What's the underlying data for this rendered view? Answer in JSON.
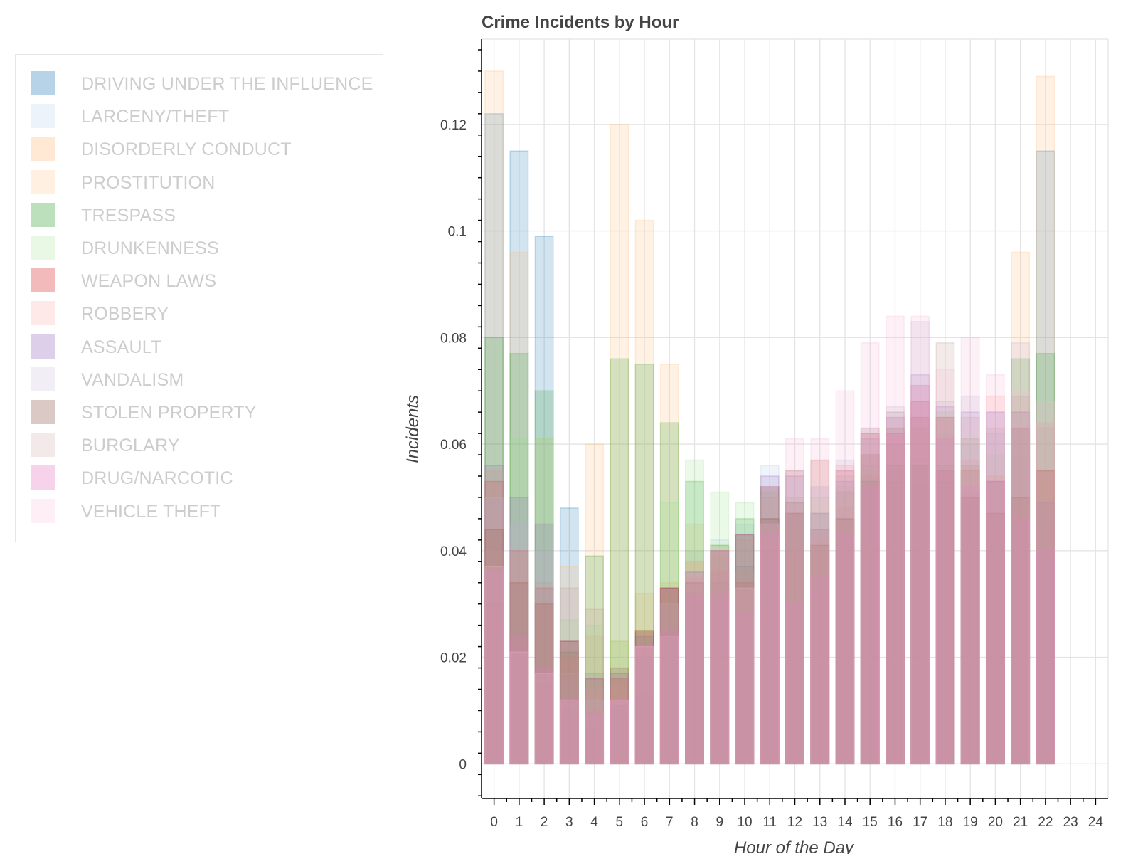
{
  "chart_data": {
    "type": "bar",
    "title": "Crime Incidents by Hour",
    "xlabel": "Hour of the Day",
    "ylabel": "Incidents",
    "x_ticks": [
      "0",
      "1",
      "2",
      "3",
      "4",
      "5",
      "6",
      "7",
      "8",
      "9",
      "10",
      "11",
      "12",
      "13",
      "14",
      "15",
      "16",
      "17",
      "18",
      "19",
      "20",
      "21",
      "22",
      "23",
      "24"
    ],
    "y_ticks": [
      "0",
      "0.02",
      "0.04",
      "0.06",
      "0.08",
      "0.1",
      "0.12"
    ],
    "ylim": [
      -0.0065,
      0.136
    ],
    "xlim": [
      -0.5,
      24.5
    ],
    "grid": true,
    "legend_placement": "left",
    "categories": [
      0,
      1,
      2,
      3,
      4,
      5,
      6,
      7,
      8,
      9,
      10,
      11,
      12,
      13,
      14,
      15,
      16,
      17,
      18,
      19,
      20,
      21,
      22
    ],
    "series": [
      {
        "name": "DRIVING UNDER THE INFLUENCE",
        "color": "#1f77b4",
        "values": [
          0.122,
          0.115,
          0.099,
          0.048,
          0.017,
          0.011,
          0.013,
          0.024,
          0.032,
          0.034,
          0.037,
          0.046,
          0.047,
          0.044,
          0.046,
          0.053,
          0.053,
          0.052,
          0.053,
          0.051,
          0.053,
          0.063,
          0.115
        ]
      },
      {
        "name": "LARCENY/THEFT",
        "color": "#aec7e8",
        "values": [
          0.03,
          0.02,
          0.015,
          0.01,
          0.007,
          0.01,
          0.02,
          0.033,
          0.04,
          0.042,
          0.045,
          0.056,
          0.055,
          0.052,
          0.055,
          0.062,
          0.066,
          0.068,
          0.062,
          0.06,
          0.062,
          0.058,
          0.045
        ]
      },
      {
        "name": "DISORDERLY CONDUCT",
        "color": "#ffbb78",
        "values": [
          0.044,
          0.034,
          0.03,
          0.02,
          0.06,
          0.12,
          0.102,
          0.075,
          0.045,
          0.04,
          0.042,
          0.04,
          0.04,
          0.041,
          0.046,
          0.052,
          0.055,
          0.057,
          0.061,
          0.055,
          0.054,
          0.05,
          0.055
        ]
      },
      {
        "name": "PROSTITUTION",
        "color": "#ffbb78",
        "values": [
          0.13,
          0.096,
          0.061,
          0.037,
          0.024,
          0.023,
          0.032,
          0.034,
          0.038,
          0.041,
          0.036,
          0.044,
          0.047,
          0.042,
          0.048,
          0.054,
          0.06,
          0.063,
          0.065,
          0.061,
          0.054,
          0.096,
          0.129
        ]
      },
      {
        "name": "TRESPASS",
        "color": "#2ca02c",
        "values": [
          0.08,
          0.077,
          0.07,
          0.021,
          0.039,
          0.076,
          0.075,
          0.064,
          0.053,
          0.041,
          0.046,
          0.046,
          0.047,
          0.047,
          0.051,
          0.053,
          0.056,
          0.056,
          0.056,
          0.056,
          0.053,
          0.076,
          0.077
        ]
      },
      {
        "name": "DRUNKENNESS",
        "color": "#98df8a",
        "values": [
          0.055,
          0.061,
          0.061,
          0.027,
          0.026,
          0.023,
          0.025,
          0.049,
          0.057,
          0.051,
          0.049,
          0.051,
          0.05,
          0.05,
          0.052,
          0.056,
          0.06,
          0.063,
          0.066,
          0.061,
          0.058,
          0.066,
          0.064
        ]
      },
      {
        "name": "WEAPON LAWS",
        "color": "#d62728",
        "values": [
          0.053,
          0.04,
          0.033,
          0.023,
          0.016,
          0.016,
          0.025,
          0.033,
          0.035,
          0.04,
          0.034,
          0.046,
          0.047,
          0.044,
          0.055,
          0.062,
          0.062,
          0.068,
          0.055,
          0.055,
          0.053,
          0.063,
          0.055
        ]
      },
      {
        "name": "ROBBERY",
        "color": "#ff9896",
        "values": [
          0.055,
          0.04,
          0.03,
          0.02,
          0.014,
          0.015,
          0.022,
          0.033,
          0.038,
          0.04,
          0.043,
          0.052,
          0.055,
          0.057,
          0.056,
          0.062,
          0.065,
          0.068,
          0.065,
          0.057,
          0.069,
          0.066,
          0.064
        ]
      },
      {
        "name": "ASSAULT",
        "color": "#9467bd",
        "values": [
          0.056,
          0.05,
          0.045,
          0.023,
          0.016,
          0.017,
          0.024,
          0.033,
          0.036,
          0.04,
          0.043,
          0.054,
          0.054,
          0.047,
          0.053,
          0.061,
          0.065,
          0.073,
          0.067,
          0.066,
          0.066,
          0.066,
          0.049
        ]
      },
      {
        "name": "VANDALISM",
        "color": "#c5b0d5",
        "values": [
          0.05,
          0.045,
          0.04,
          0.017,
          0.012,
          0.012,
          0.022,
          0.03,
          0.036,
          0.04,
          0.043,
          0.052,
          0.05,
          0.052,
          0.057,
          0.063,
          0.067,
          0.083,
          0.068,
          0.069,
          0.066,
          0.079,
          0.064
        ]
      },
      {
        "name": "STOLEN PROPERTY",
        "color": "#8c564b",
        "values": [
          0.044,
          0.034,
          0.03,
          0.023,
          0.01,
          0.018,
          0.025,
          0.033,
          0.034,
          0.036,
          0.043,
          0.052,
          0.049,
          0.041,
          0.046,
          0.058,
          0.063,
          0.065,
          0.065,
          0.05,
          0.047,
          0.05,
          0.055
        ]
      },
      {
        "name": "BURGLARY",
        "color": "#c49c94",
        "values": [
          0.04,
          0.039,
          0.034,
          0.033,
          0.029,
          0.016,
          0.022,
          0.03,
          0.036,
          0.039,
          0.036,
          0.05,
          0.055,
          0.057,
          0.054,
          0.063,
          0.066,
          0.071,
          0.079,
          0.065,
          0.063,
          0.069,
          0.063
        ]
      },
      {
        "name": "DRUG/NARCOTIC",
        "color": "#e377c2",
        "values": [
          0.036,
          0.024,
          0.018,
          0.012,
          0.009,
          0.012,
          0.022,
          0.025,
          0.032,
          0.032,
          0.028,
          0.043,
          0.03,
          0.035,
          0.043,
          0.052,
          0.062,
          0.071,
          0.061,
          0.052,
          0.053,
          0.046,
          0.04
        ]
      },
      {
        "name": "VEHICLE THEFT",
        "color": "#f7b6d2",
        "values": [
          0.037,
          0.021,
          0.017,
          0.012,
          0.01,
          0.012,
          0.022,
          0.024,
          0.035,
          0.036,
          0.033,
          0.045,
          0.061,
          0.061,
          0.07,
          0.079,
          0.084,
          0.084,
          0.074,
          0.08,
          0.073,
          0.07,
          0.068
        ]
      }
    ]
  }
}
